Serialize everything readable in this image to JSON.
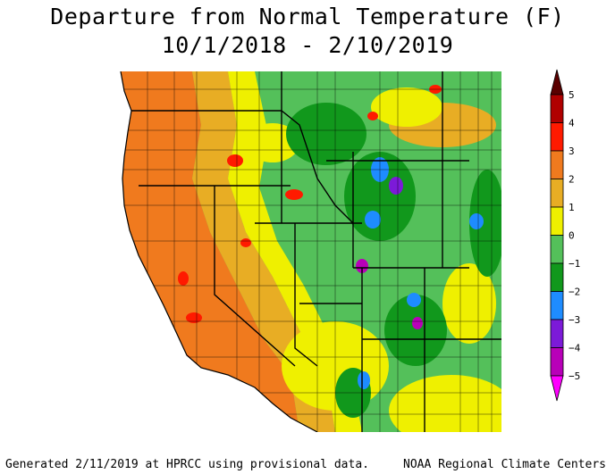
{
  "title": {
    "line1": "Departure from Normal Temperature (F)",
    "line2": "10/1/2018 - 2/10/2019"
  },
  "legend": {
    "labels": [
      "5",
      "4",
      "3",
      "2",
      "1",
      "0",
      "−1",
      "−2",
      "−3",
      "−4",
      "−5"
    ],
    "colors": {
      "above_5": "#5a0000",
      "4_to_5": "#b00000",
      "3_to_4": "#ff1a00",
      "2_to_3": "#f07a1e",
      "1_to_2": "#e8ad24",
      "0_to_1": "#eff000",
      "neg1_to_0": "#54c05a",
      "neg2_to_neg1": "#11981c",
      "neg3_to_neg2": "#1e8cff",
      "neg4_to_neg3": "#7c1ad8",
      "neg5_to_neg4": "#b800b8",
      "below_neg5": "#ff00ff"
    }
  },
  "footer": {
    "left": "Generated 2/11/2019 at HPRCC using provisional data.",
    "right": "NOAA Regional Climate Centers"
  }
}
